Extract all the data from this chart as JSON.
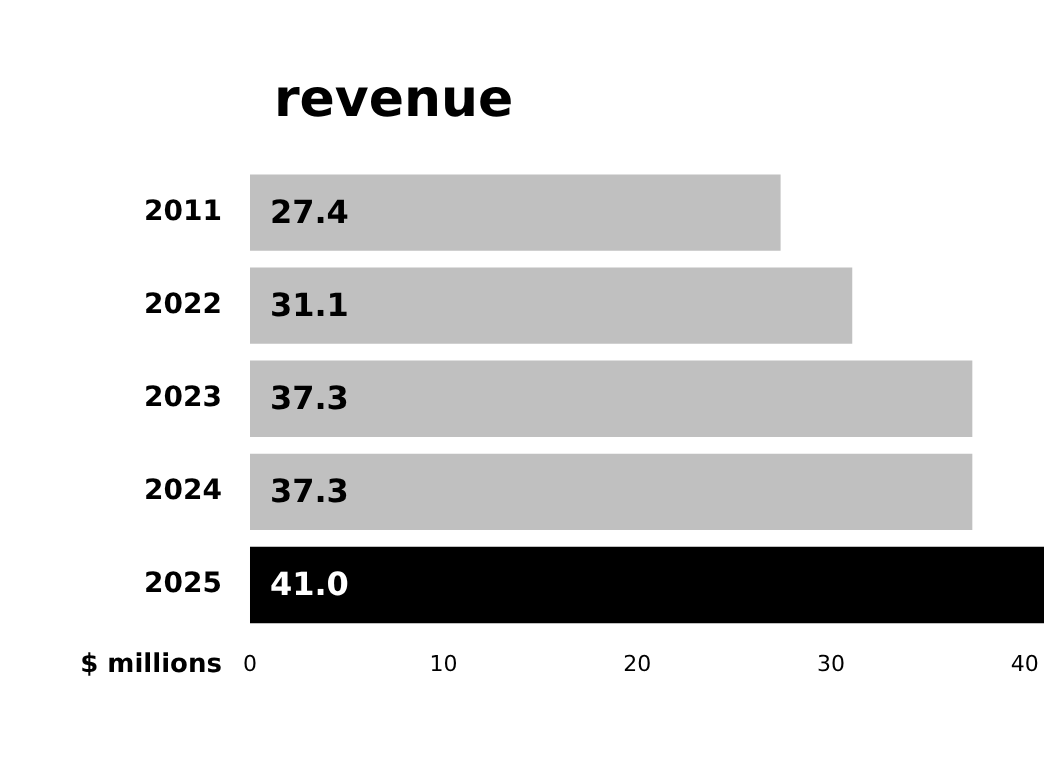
{
  "chart_data": {
    "type": "bar",
    "orientation": "horizontal",
    "title": "revenue",
    "xlabel": "$ millions",
    "categories": [
      "2011",
      "2022",
      "2023",
      "2024",
      "2025"
    ],
    "values": [
      27.4,
      31.1,
      37.3,
      37.3,
      41.0
    ],
    "colors": [
      "#c0c0c0",
      "#c0c0c0",
      "#c0c0c0",
      "#c0c0c0",
      "#000000"
    ],
    "value_labels": [
      "27.4",
      "31.1",
      "37.3",
      "37.3",
      "41.0"
    ],
    "xlim": [
      0,
      41
    ],
    "xticks": [
      0,
      10,
      20,
      30,
      40
    ],
    "grid": false,
    "legend": false
  }
}
